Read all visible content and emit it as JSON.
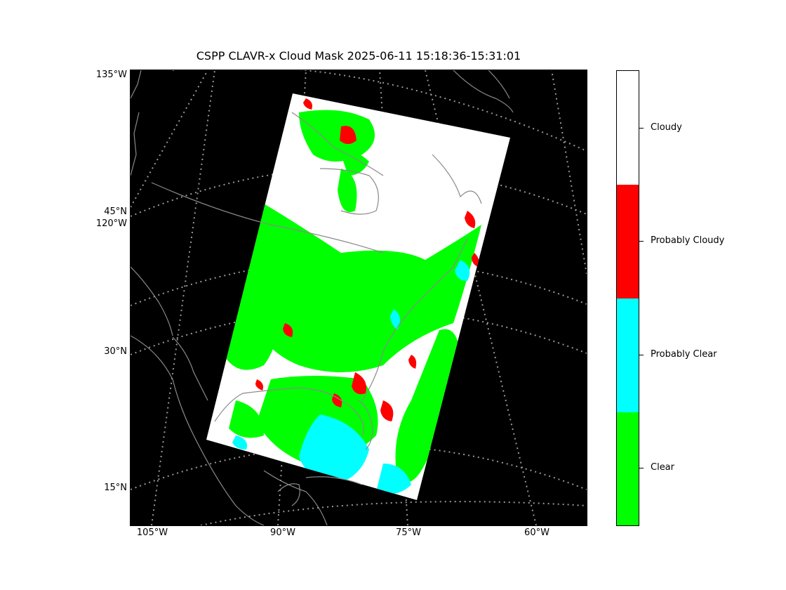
{
  "title": "CSPP CLAVR-x Cloud Mask 2025-06-11 15:18:36-15:31:01",
  "axes": {
    "left_labels": [
      "135°W",
      "45°N",
      "120°W",
      "30°N",
      "15°N"
    ],
    "bottom_labels": [
      "105°W",
      "90°W",
      "75°W",
      "60°W"
    ]
  },
  "legend": {
    "categories": [
      {
        "label": "Cloudy",
        "color": "#ffffff"
      },
      {
        "label": "Probably Cloudy",
        "color": "#ff0000"
      },
      {
        "label": "Probably Clear",
        "color": "#00ffff"
      },
      {
        "label": "Clear",
        "color": "#00ff00"
      }
    ]
  },
  "colors": {
    "background": "#000000",
    "gridline": "#999999",
    "coastline": "#8a8a8a",
    "swath_cloudy": "#ffffff",
    "swath_clear": "#00ff00",
    "swath_prob_cloudy": "#ff0000",
    "swath_prob_clear": "#00ffff"
  }
}
